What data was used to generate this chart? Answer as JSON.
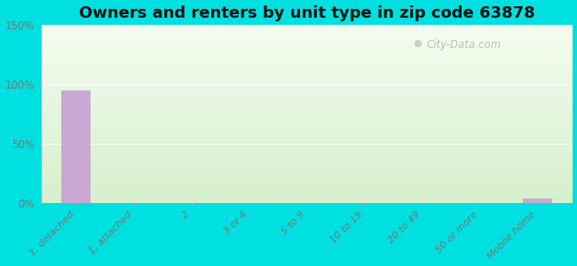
{
  "title": "Owners and renters by unit type in zip code 63878",
  "categories": [
    "1, detached",
    "1, attached",
    "2",
    "3 or 4",
    "5 to 9",
    "10 to 19",
    "20 to 49",
    "50 or more",
    "Mobile home"
  ],
  "values": [
    95,
    0,
    0,
    0,
    0,
    0,
    0,
    0,
    4
  ],
  "bar_color": "#c9a8d4",
  "ylim": [
    0,
    150
  ],
  "yticks": [
    0,
    50,
    100,
    150
  ],
  "ytick_labels": [
    "0%",
    "50%",
    "100%",
    "150%"
  ],
  "bg_outer": "#00e0e0",
  "bg_grad_top": "#f5faf0",
  "bg_grad_bottom": "#d8f0cc",
  "title_fontsize": 13,
  "watermark": "City-Data.com",
  "tick_label_color": "#777777",
  "grid_color": "#e8e8e8"
}
